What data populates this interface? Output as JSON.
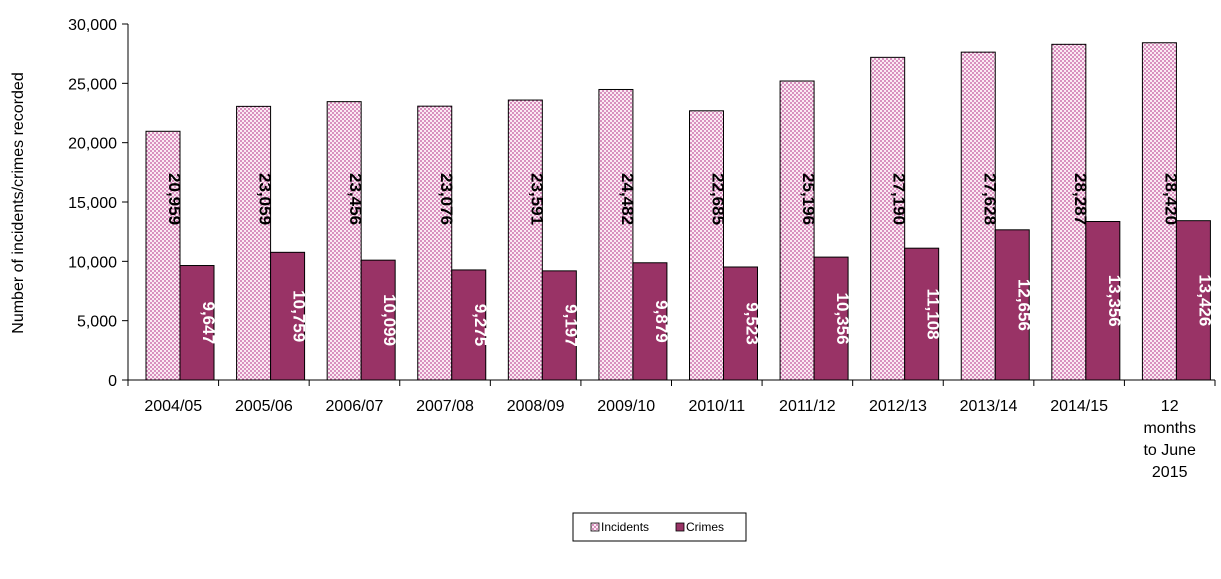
{
  "chart_data": {
    "type": "bar",
    "ylabel": "Number of incidents/crimes recorded",
    "xlabel": "",
    "ylim": [
      0,
      30000
    ],
    "y_ticks": [
      "0",
      "5,000",
      "10,000",
      "15,000",
      "20,000",
      "25,000",
      "30,000"
    ],
    "y_tick_values": [
      0,
      5000,
      10000,
      15000,
      20000,
      25000,
      30000
    ],
    "categories": [
      [
        "2004/05"
      ],
      [
        "2005/06"
      ],
      [
        "2006/07"
      ],
      [
        "2007/08"
      ],
      [
        "2008/09"
      ],
      [
        "2009/10"
      ],
      [
        "2010/11"
      ],
      [
        "2011/12"
      ],
      [
        "2012/13"
      ],
      [
        "2013/14"
      ],
      [
        "2014/15"
      ],
      [
        "12",
        "months",
        "to June",
        "2015"
      ]
    ],
    "series": [
      {
        "name": "Incidents",
        "color": "#c04f9b",
        "fill": "dotted-pink",
        "values": [
          20959,
          23059,
          23456,
          23076,
          23591,
          24482,
          22685,
          25196,
          27190,
          27628,
          28287,
          28420
        ],
        "labels": [
          "20,959",
          "23,059",
          "23,456",
          "23,076",
          "23,591",
          "24,482",
          "22,685",
          "25,196",
          "27,190",
          "27,628",
          "28,287",
          "28,420"
        ]
      },
      {
        "name": "Crimes",
        "color": "#993366",
        "fill": "solid",
        "values": [
          9647,
          10759,
          10099,
          9275,
          9197,
          9879,
          9523,
          10356,
          11108,
          12656,
          13356,
          13426
        ],
        "labels": [
          "9,647",
          "10,759",
          "10,099",
          "9,275",
          "9,197",
          "9,879",
          "9,523",
          "10,356",
          "11,108",
          "12,656",
          "13,356",
          "13,426"
        ]
      }
    ],
    "grid": false,
    "legend_position": "bottom-center"
  }
}
